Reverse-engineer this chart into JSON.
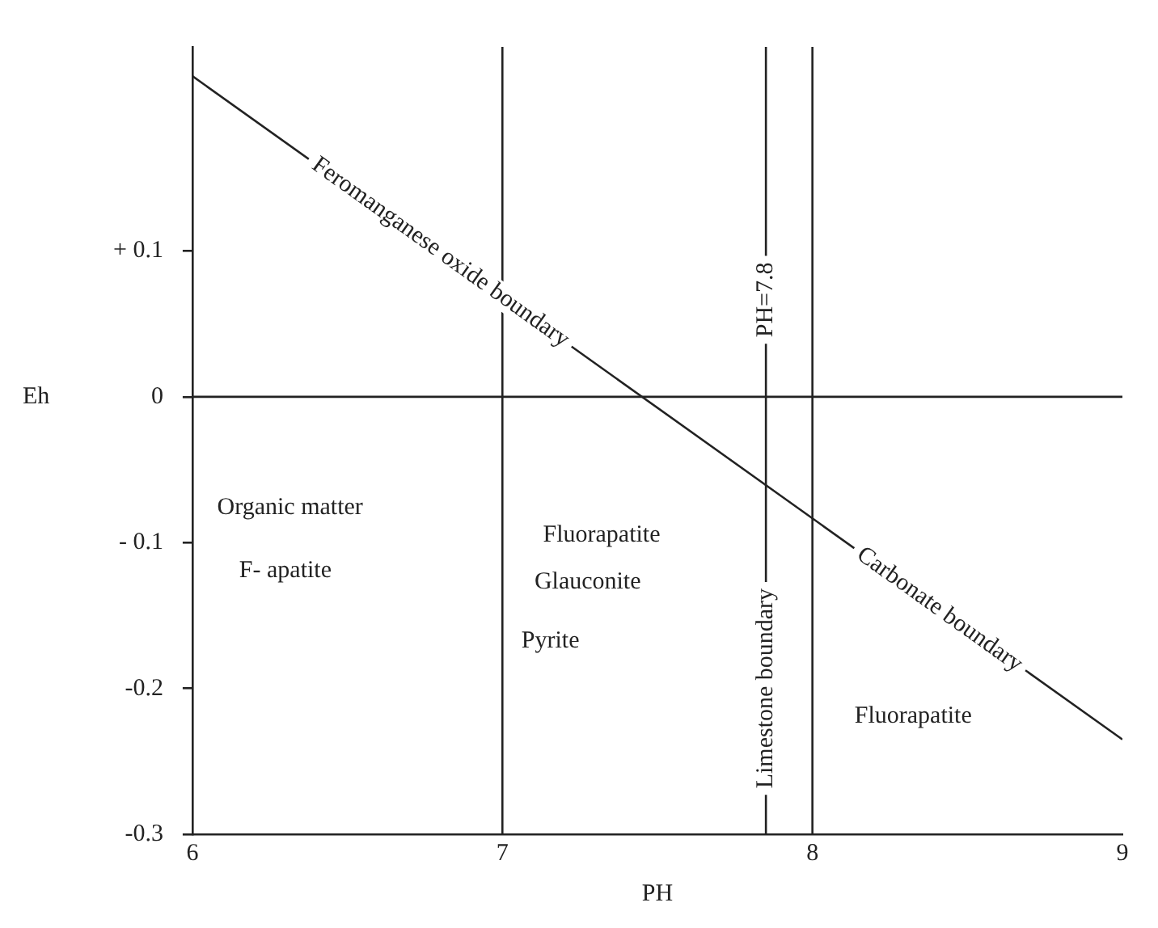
{
  "chart_data": {
    "type": "line",
    "xlabel": "PH",
    "ylabel": "Eh",
    "x": [
      6,
      9
    ],
    "series": [
      {
        "color": "#222222",
        "values": [
          0.22,
          -0.235
        ]
      }
    ],
    "xlim": [
      6,
      9
    ],
    "xticks": [
      6,
      7,
      8,
      9
    ],
    "ylim": [
      -0.3,
      0.24
    ],
    "yticks": [
      {
        "value": 0.1,
        "label": "+ 0.1"
      },
      0,
      {
        "value": -0.1,
        "label": "- 0.1"
      },
      -0.2,
      -0.3
    ],
    "ref_lines": [
      {
        "axis": "x",
        "value": 7
      },
      {
        "axis": "x",
        "value": 8
      },
      {
        "axis": "y",
        "value": 0
      },
      {
        "axis": "x",
        "value": 7.85,
        "label": "PH=7.8"
      }
    ],
    "annotations": [
      {
        "text": "Feromanganese oxide boundary",
        "x": 6.8,
        "y": 0.099
      },
      {
        "text": "Carbonate boundary",
        "x": 8.41,
        "y": -0.146
      },
      {
        "text": "Limestone boundary",
        "x": 7.85,
        "y": -0.2
      },
      "Organic matter",
      "F- apatite",
      "Fluorapatite",
      "Glauconite",
      "Pyrite",
      "Fluorapatite"
    ],
    "grid": false,
    "legend": false,
    "marker": "none",
    "line_style": "solid"
  }
}
